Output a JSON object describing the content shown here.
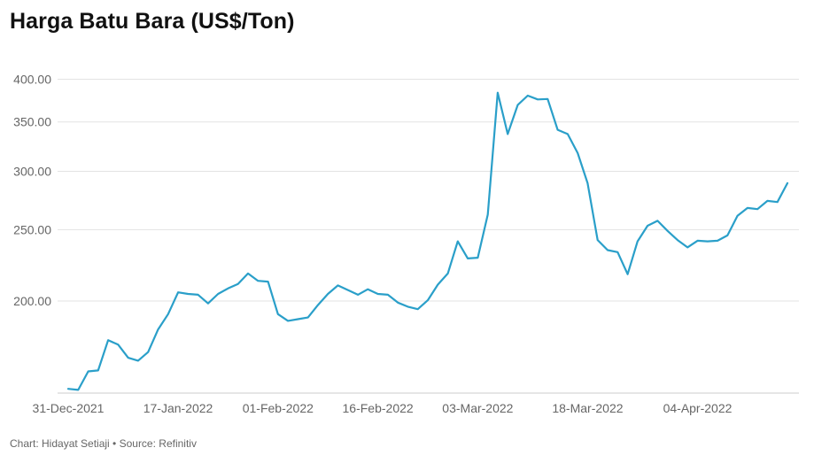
{
  "chart_data": {
    "type": "line",
    "title": "Harga Batu Bara (US$/Ton)",
    "xlabel": "",
    "ylabel": "",
    "y_scale": "log",
    "grid": true,
    "line_color": "#2a9fc9",
    "yticks": [
      200,
      250,
      300,
      350,
      400
    ],
    "ytick_labels": [
      "200.00",
      "250.00",
      "300.00",
      "350.00",
      "400.00"
    ],
    "xtick_labels": [
      "31-Dec-2021",
      "17-Jan-2022",
      "01-Feb-2022",
      "16-Feb-2022",
      "03-Mar-2022",
      "18-Mar-2022",
      "04-Apr-2022"
    ],
    "ylim": [
      150,
      440
    ],
    "values": [
      152,
      151.5,
      160.5,
      161,
      177,
      174.5,
      167.5,
      166,
      170.5,
      183,
      192,
      205.5,
      204.5,
      204,
      198.5,
      204.5,
      208,
      211,
      218,
      213,
      212.5,
      192,
      188,
      189,
      190,
      197.5,
      204.5,
      210,
      207,
      204,
      207.5,
      204.5,
      204,
      199,
      196.5,
      195,
      200.5,
      210.5,
      218,
      241,
      228.5,
      229,
      262,
      383.5,
      337,
      369,
      380,
      375.5,
      376,
      341.5,
      337,
      317.5,
      289,
      242,
      234.5,
      233,
      217.5,
      241,
      253,
      257,
      249,
      242,
      236.5,
      241.5,
      241,
      241.5,
      245.5,
      261,
      267.5,
      266.5,
      273.5,
      272.5,
      289
    ]
  },
  "footer": "Chart: Hidayat Setiaji • Source: Refinitiv"
}
